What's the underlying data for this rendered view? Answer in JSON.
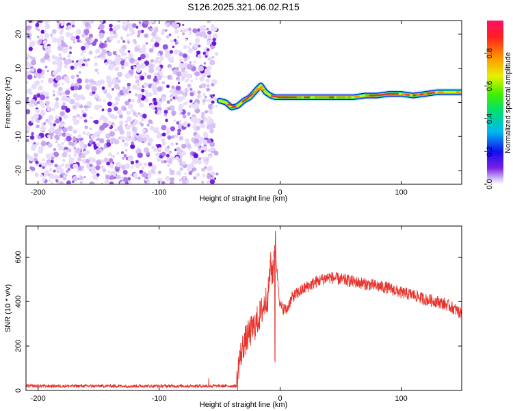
{
  "title": "S126.2025.321.06.02.R15",
  "chart_data": [
    {
      "type": "heatmap",
      "xlabel": "Height of straight line (km)",
      "ylabel": "Frequency (Hz)",
      "xlim": [
        -210,
        150
      ],
      "ylim": [
        -24,
        24
      ],
      "x_ticks": [
        -200,
        -100,
        0,
        100
      ],
      "y_ticks": [
        -20,
        -10,
        0,
        10,
        20
      ],
      "noise_region_x": [
        -210,
        -52
      ],
      "colorbar": {
        "label": "Normalized spectral amplitude",
        "range": [
          0,
          1
        ],
        "ticks": [
          0.0,
          0.2,
          0.4,
          0.6,
          0.8
        ]
      },
      "ridge": {
        "x": [
          -50,
          -45,
          -40,
          -35,
          -30,
          -25,
          -20,
          -16,
          -12,
          -8,
          -4,
          0,
          10,
          20,
          30,
          40,
          50,
          60,
          70,
          80,
          90,
          100,
          110,
          120,
          130,
          140,
          150
        ],
        "frequency": [
          0.5,
          0.0,
          -1.5,
          -1.0,
          0.5,
          1.5,
          3.5,
          5.0,
          3.0,
          2.0,
          1.5,
          1.5,
          1.5,
          1.5,
          1.5,
          1.5,
          1.5,
          1.5,
          2.0,
          2.0,
          2.5,
          2.5,
          2.0,
          2.5,
          3.0,
          3.0,
          3.0
        ]
      }
    },
    {
      "type": "line",
      "xlabel": "Height of straight line (km)",
      "ylabel": "SNR (10 * v/v)",
      "xlim": [
        -210,
        150
      ],
      "ylim": [
        0,
        740
      ],
      "x_ticks": [
        -200,
        -100,
        0,
        100
      ],
      "y_ticks": [
        0,
        200,
        400,
        600
      ],
      "series": [
        {
          "color": "#e8332c",
          "x": [
            -210,
            -180,
            -150,
            -120,
            -90,
            -60,
            -40,
            -36,
            -34,
            -30,
            -25,
            -20,
            -15,
            -10,
            -8,
            -6,
            -4,
            -3,
            0,
            5,
            10,
            20,
            30,
            40,
            50,
            60,
            70,
            80,
            90,
            100,
            110,
            120,
            130,
            140,
            150
          ],
          "values": [
            20,
            20,
            20,
            20,
            20,
            20,
            20,
            20,
            130,
            210,
            260,
            300,
            360,
            430,
            560,
            520,
            700,
            560,
            380,
            360,
            420,
            460,
            490,
            510,
            500,
            490,
            480,
            470,
            460,
            440,
            430,
            410,
            400,
            380,
            345
          ]
        }
      ]
    }
  ]
}
